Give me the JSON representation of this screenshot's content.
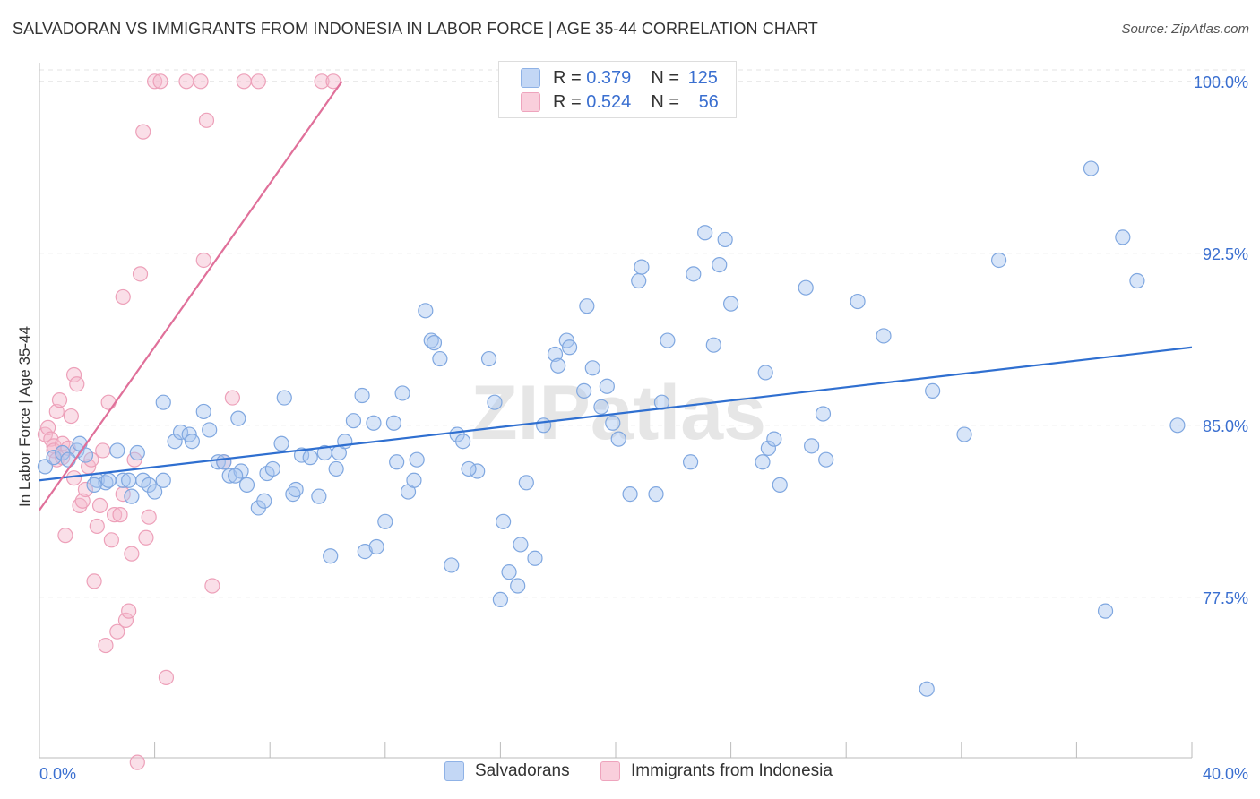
{
  "title": "SALVADORAN VS IMMIGRANTS FROM INDONESIA IN LABOR FORCE | AGE 35-44 CORRELATION CHART",
  "source": "Source: ZipAtlas.com",
  "watermark": "ZIPatlas",
  "legend": {
    "r_label": "R =",
    "n_label": "N =",
    "series1": {
      "r": "0.379",
      "n": "125"
    },
    "series2": {
      "r": "0.524",
      "n": "56"
    }
  },
  "bottom_legend": {
    "series1": "Salvadorans",
    "series2": "Immigrants from Indonesia"
  },
  "colors": {
    "blue": "#a9c6f0",
    "blue_line": "#2f6fd0",
    "pink": "#f5b8cb",
    "pink_line": "#e0709a",
    "axis_text": "#3a6fd0"
  },
  "chart_data": {
    "type": "scatter",
    "title": "SALVADORAN VS IMMIGRANTS FROM INDONESIA IN LABOR FORCE | AGE 35-44 CORRELATION CHART",
    "xlabel": "",
    "ylabel": "In Labor Force | Age 35-44",
    "xlim": [
      0,
      40
    ],
    "ylim": [
      70.5,
      100.5
    ],
    "x_tick_labels": [
      "0.0%",
      "40.0%"
    ],
    "y_ticks": [
      77.5,
      85.0,
      92.5,
      100.0
    ],
    "y_tick_labels": [
      "77.5%",
      "85.0%",
      "92.5%",
      "100.0%"
    ],
    "grid": true,
    "legend_position": "top-center",
    "series": [
      {
        "name": "Salvadorans",
        "trend": {
          "x": [
            0,
            40
          ],
          "y": [
            82.6,
            88.4
          ]
        },
        "points": [
          [
            0.2,
            83.2
          ],
          [
            0.5,
            83.6
          ],
          [
            0.8,
            83.8
          ],
          [
            1.3,
            83.9
          ],
          [
            1.4,
            84.2
          ],
          [
            1.6,
            83.7
          ],
          [
            2.0,
            82.6
          ],
          [
            2.3,
            82.5
          ],
          [
            2.4,
            82.6
          ],
          [
            2.7,
            83.9
          ],
          [
            2.9,
            82.6
          ],
          [
            3.2,
            81.9
          ],
          [
            3.4,
            83.8
          ],
          [
            3.6,
            82.6
          ],
          [
            3.8,
            82.4
          ],
          [
            4.0,
            82.1
          ],
          [
            4.3,
            82.6
          ],
          [
            4.3,
            86.0
          ],
          [
            4.7,
            84.3
          ],
          [
            4.9,
            84.7
          ],
          [
            5.2,
            84.6
          ],
          [
            5.3,
            84.3
          ],
          [
            5.7,
            85.6
          ],
          [
            5.9,
            84.8
          ],
          [
            6.2,
            83.4
          ],
          [
            6.4,
            83.4
          ],
          [
            6.6,
            82.8
          ],
          [
            6.9,
            85.3
          ],
          [
            7.0,
            83.0
          ],
          [
            7.2,
            82.4
          ],
          [
            7.6,
            81.4
          ],
          [
            7.8,
            81.7
          ],
          [
            7.9,
            82.9
          ],
          [
            8.1,
            83.1
          ],
          [
            8.4,
            84.2
          ],
          [
            8.5,
            86.2
          ],
          [
            8.8,
            82.0
          ],
          [
            8.9,
            82.2
          ],
          [
            9.1,
            83.7
          ],
          [
            9.4,
            83.6
          ],
          [
            9.7,
            81.9
          ],
          [
            9.9,
            83.8
          ],
          [
            10.1,
            79.3
          ],
          [
            10.3,
            83.1
          ],
          [
            10.4,
            83.8
          ],
          [
            10.6,
            84.3
          ],
          [
            10.9,
            85.2
          ],
          [
            11.2,
            86.3
          ],
          [
            11.3,
            79.5
          ],
          [
            11.6,
            85.1
          ],
          [
            11.7,
            79.7
          ],
          [
            12.0,
            80.8
          ],
          [
            12.3,
            85.1
          ],
          [
            12.4,
            83.4
          ],
          [
            12.6,
            86.4
          ],
          [
            12.8,
            82.1
          ],
          [
            13.0,
            82.6
          ],
          [
            13.1,
            83.5
          ],
          [
            13.4,
            90.0
          ],
          [
            13.6,
            88.7
          ],
          [
            13.7,
            88.6
          ],
          [
            13.9,
            87.9
          ],
          [
            14.3,
            78.9
          ],
          [
            14.5,
            84.6
          ],
          [
            14.7,
            84.3
          ],
          [
            15.2,
            83.0
          ],
          [
            15.6,
            87.9
          ],
          [
            15.8,
            86.0
          ],
          [
            16.0,
            77.4
          ],
          [
            16.1,
            80.8
          ],
          [
            16.3,
            78.6
          ],
          [
            16.6,
            78.0
          ],
          [
            16.7,
            79.8
          ],
          [
            16.9,
            82.5
          ],
          [
            17.2,
            79.2
          ],
          [
            17.5,
            85.0
          ],
          [
            17.9,
            88.1
          ],
          [
            18.0,
            87.6
          ],
          [
            18.3,
            88.7
          ],
          [
            18.4,
            88.4
          ],
          [
            18.9,
            86.5
          ],
          [
            19.0,
            90.2
          ],
          [
            19.2,
            87.5
          ],
          [
            19.5,
            85.8
          ],
          [
            19.7,
            86.7
          ],
          [
            19.9,
            85.1
          ],
          [
            20.1,
            84.4
          ],
          [
            20.5,
            82.0
          ],
          [
            20.8,
            91.3
          ],
          [
            20.9,
            91.9
          ],
          [
            21.4,
            82.0
          ],
          [
            21.6,
            86.0
          ],
          [
            21.8,
            88.7
          ],
          [
            22.6,
            83.4
          ],
          [
            22.7,
            91.6
          ],
          [
            23.1,
            93.4
          ],
          [
            23.4,
            88.5
          ],
          [
            23.6,
            92.0
          ],
          [
            23.8,
            93.1
          ],
          [
            24.0,
            90.3
          ],
          [
            25.1,
            83.4
          ],
          [
            25.2,
            87.3
          ],
          [
            25.3,
            84.0
          ],
          [
            25.5,
            84.4
          ],
          [
            25.7,
            82.4
          ],
          [
            26.6,
            91.0
          ],
          [
            26.8,
            84.1
          ],
          [
            27.2,
            85.5
          ],
          [
            27.3,
            83.5
          ],
          [
            28.4,
            90.4
          ],
          [
            29.3,
            88.9
          ],
          [
            31.0,
            86.5
          ],
          [
            32.1,
            84.6
          ],
          [
            33.3,
            92.2
          ],
          [
            36.5,
            96.2
          ],
          [
            37.0,
            76.9
          ],
          [
            37.6,
            93.2
          ],
          [
            38.1,
            91.3
          ],
          [
            39.5,
            85.0
          ],
          [
            30.8,
            73.5
          ],
          [
            1.0,
            83.5
          ],
          [
            1.9,
            82.4
          ],
          [
            3.1,
            82.6
          ],
          [
            6.8,
            82.8
          ],
          [
            14.9,
            83.1
          ]
        ]
      },
      {
        "name": "Immigrants from Indonesia",
        "trend": {
          "x": [
            0,
            10.5
          ],
          "y": [
            81.3,
            100.0
          ]
        },
        "points": [
          [
            0.2,
            84.6
          ],
          [
            0.3,
            84.9
          ],
          [
            0.4,
            84.4
          ],
          [
            0.5,
            84.1
          ],
          [
            0.5,
            83.9
          ],
          [
            0.6,
            85.6
          ],
          [
            0.6,
            83.5
          ],
          [
            0.7,
            86.1
          ],
          [
            0.8,
            84.2
          ],
          [
            0.8,
            83.6
          ],
          [
            0.9,
            80.2
          ],
          [
            1.0,
            84.0
          ],
          [
            1.1,
            85.4
          ],
          [
            1.2,
            87.2
          ],
          [
            1.3,
            86.8
          ],
          [
            1.4,
            81.5
          ],
          [
            1.5,
            81.7
          ],
          [
            1.6,
            82.2
          ],
          [
            1.7,
            83.2
          ],
          [
            1.8,
            83.5
          ],
          [
            1.9,
            78.2
          ],
          [
            2.0,
            80.6
          ],
          [
            2.1,
            81.5
          ],
          [
            2.2,
            83.9
          ],
          [
            2.3,
            75.4
          ],
          [
            2.4,
            86.0
          ],
          [
            2.5,
            80.0
          ],
          [
            2.6,
            81.1
          ],
          [
            2.7,
            76.0
          ],
          [
            2.8,
            81.1
          ],
          [
            2.9,
            82.0
          ],
          [
            3.0,
            76.5
          ],
          [
            3.1,
            76.9
          ],
          [
            3.2,
            79.4
          ],
          [
            3.3,
            83.5
          ],
          [
            3.4,
            70.3
          ],
          [
            3.5,
            91.6
          ],
          [
            3.6,
            97.8
          ],
          [
            3.7,
            80.1
          ],
          [
            3.8,
            81.0
          ],
          [
            4.0,
            100.0
          ],
          [
            4.2,
            100.0
          ],
          [
            4.4,
            74.0
          ],
          [
            5.1,
            100.0
          ],
          [
            5.6,
            100.0
          ],
          [
            5.7,
            92.2
          ],
          [
            5.8,
            98.3
          ],
          [
            6.0,
            78.0
          ],
          [
            6.4,
            83.4
          ],
          [
            6.7,
            86.2
          ],
          [
            7.1,
            100.0
          ],
          [
            7.6,
            100.0
          ],
          [
            9.8,
            100.0
          ],
          [
            10.2,
            100.0
          ],
          [
            1.2,
            82.7
          ],
          [
            2.9,
            90.6
          ]
        ]
      }
    ]
  }
}
